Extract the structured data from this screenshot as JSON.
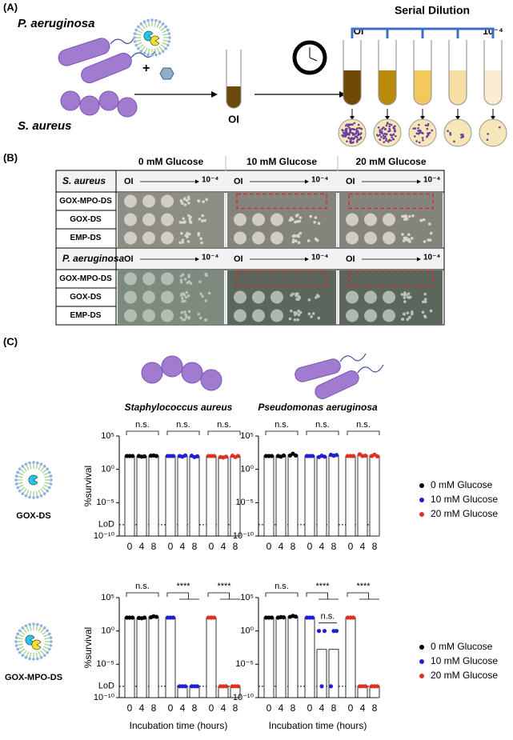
{
  "panel_a": {
    "label": "(A)",
    "organism_1": "P. aeruginosa",
    "organism_2": "S. aureus",
    "tube_label": "OI",
    "dilution_title": "Serial Dilution",
    "dilution_start": "OI",
    "dilution_end": "10⁻⁴"
  },
  "panel_b": {
    "label": "(B)",
    "conditions": [
      "0 mM Glucose",
      "10 mM Glucose",
      "20 mM Glucose"
    ],
    "dilution_start": "OI",
    "dilution_end": "10⁻⁴",
    "sections": [
      {
        "organism": "S. aureus",
        "rows": [
          "GOX-MPO-DS",
          "GOX-DS",
          "EMP-DS"
        ]
      },
      {
        "organism": "P. aeruginosa",
        "rows": [
          "GOX-MPO-DS",
          "GOX-DS",
          "EMP-DS"
        ]
      }
    ]
  },
  "panel_c": {
    "label": "(C)",
    "row_labels": [
      "GOX-DS",
      "GOX-MPO-DS"
    ]
  },
  "chart_data": [
    {
      "type": "bar",
      "title": "Staphylococcus aureus",
      "ylabel": "%survival",
      "log_scale": true,
      "ylim": [
        1e-10,
        100000
      ],
      "yticks": [
        {
          "value": 1e-10,
          "label": "10⁻¹⁰"
        },
        {
          "value": 1e-05,
          "label": "10⁻⁵"
        },
        {
          "value": 1,
          "label": "10⁰"
        },
        {
          "value": 100000,
          "label": "10⁵"
        }
      ],
      "lod": {
        "value": 5e-09,
        "label": "LoD"
      },
      "categories": [
        "0",
        "4",
        "8"
      ],
      "series": [
        {
          "color": "#000000",
          "values": [
            100,
            90,
            110
          ],
          "points": [
            [
              100,
              100,
              100
            ],
            [
              100,
              80,
              90
            ],
            [
              110,
              120,
              100
            ]
          ]
        },
        {
          "color": "#1f1fd6",
          "values": [
            100,
            100,
            90
          ],
          "points": [
            [
              100,
              100,
              100
            ],
            [
              100,
              80,
              120
            ],
            [
              110,
              70,
              90
            ]
          ]
        },
        {
          "color": "#e0301e",
          "values": [
            100,
            70,
            90
          ],
          "points": [
            [
              100,
              100,
              100
            ],
            [
              70,
              60,
              80
            ],
            [
              110,
              70,
              100
            ]
          ]
        }
      ],
      "annotations": [
        "n.s.",
        "n.s.",
        "n.s."
      ]
    },
    {
      "type": "bar",
      "title": "Pseudomonas aeruginosa",
      "log_scale": true,
      "ylim": [
        1e-10,
        100000
      ],
      "yticks": [
        {
          "value": 1e-10,
          "label": "10⁻¹⁰"
        },
        {
          "value": 1e-05,
          "label": "10⁻⁵"
        },
        {
          "value": 1,
          "label": "10⁰"
        },
        {
          "value": 100000,
          "label": "10⁵"
        }
      ],
      "lod": 5e-09,
      "categories": [
        "0",
        "4",
        "8"
      ],
      "legend": "right",
      "series": [
        {
          "name": "0 mM Glucose",
          "color": "#000000",
          "values": [
            100,
            100,
            150
          ],
          "points": [
            [
              100,
              100,
              100
            ],
            [
              100,
              80,
              120
            ],
            [
              120,
              220,
              120
            ]
          ]
        },
        {
          "name": "10 mM Glucose",
          "color": "#1f1fd6",
          "values": [
            100,
            90,
            130
          ],
          "points": [
            [
              100,
              100,
              100
            ],
            [
              70,
              110,
              80
            ],
            [
              150,
              110,
              140
            ]
          ]
        },
        {
          "name": "20 mM Glucose",
          "color": "#e0301e",
          "values": [
            100,
            130,
            110
          ],
          "points": [
            [
              100,
              100,
              100
            ],
            [
              180,
              100,
              110
            ],
            [
              100,
              160,
              90
            ]
          ]
        }
      ],
      "annotations": [
        "n.s.",
        "n.s.",
        "n.s."
      ]
    },
    {
      "type": "bar",
      "ylabel": "%survival",
      "xlabel": "Incubation time (hours)",
      "log_scale": true,
      "ylim": [
        1e-10,
        100000
      ],
      "yticks": [
        {
          "value": 1e-10,
          "label": "10⁻¹⁰"
        },
        {
          "value": 1e-05,
          "label": "10⁻⁵"
        },
        {
          "value": 1,
          "label": "10⁰"
        },
        {
          "value": 100000,
          "label": "10⁵"
        }
      ],
      "lod": {
        "value": 5e-09,
        "label": "LoD"
      },
      "categories": [
        "0",
        "4",
        "8"
      ],
      "series": [
        {
          "color": "#000000",
          "values": [
            100,
            90,
            130
          ],
          "points": [
            [
              100,
              100,
              100
            ],
            [
              90,
              80,
              100
            ],
            [
              110,
              160,
              130
            ]
          ]
        },
        {
          "color": "#1f1fd6",
          "values": [
            100,
            5e-09,
            5e-09
          ],
          "points": [
            [
              100,
              100,
              100
            ],
            [
              5e-09,
              5e-09,
              5e-09
            ],
            [
              5e-09,
              5e-09,
              5e-09
            ]
          ]
        },
        {
          "color": "#e0301e",
          "values": [
            100,
            5e-09,
            5e-09
          ],
          "points": [
            [
              100,
              100,
              100
            ],
            [
              5e-09,
              5e-09,
              5e-09
            ],
            [
              5e-09,
              5e-09,
              5e-09
            ]
          ]
        }
      ],
      "annotations": [
        "n.s.",
        "****",
        "****"
      ]
    },
    {
      "type": "bar",
      "xlabel": "Incubation time (hours)",
      "log_scale": true,
      "ylim": [
        1e-10,
        100000
      ],
      "yticks": [
        {
          "value": 1e-10,
          "label": "10⁻¹⁰"
        },
        {
          "value": 1e-05,
          "label": "10⁻⁵"
        },
        {
          "value": 1,
          "label": "10⁰"
        },
        {
          "value": 100000,
          "label": "10⁵"
        }
      ],
      "lod": 5e-09,
      "categories": [
        "0",
        "4",
        "8"
      ],
      "legend": "right",
      "series": [
        {
          "name": "0 mM Glucose",
          "color": "#000000",
          "values": [
            100,
            110,
            150
          ],
          "points": [
            [
              100,
              100,
              100
            ],
            [
              100,
              120,
              110
            ],
            [
              130,
              180,
              140
            ]
          ]
        },
        {
          "name": "10 mM Glucose",
          "color": "#1f1fd6",
          "values": [
            100,
            0.0017,
            0.0017
          ],
          "points": [
            [
              100,
              100,
              100
            ],
            [
              1,
              5e-09,
              1
            ],
            [
              5e-09,
              1,
              1
            ]
          ]
        },
        {
          "name": "20 mM Glucose",
          "color": "#e0301e",
          "values": [
            100,
            5e-09,
            5e-09
          ],
          "points": [
            [
              100,
              100,
              100
            ],
            [
              5e-09,
              5e-09,
              5e-09
            ],
            [
              5e-09,
              5e-09,
              5e-09
            ]
          ]
        }
      ],
      "annotations": [
        "n.s.",
        "****",
        "****",
        "n.s."
      ]
    }
  ]
}
